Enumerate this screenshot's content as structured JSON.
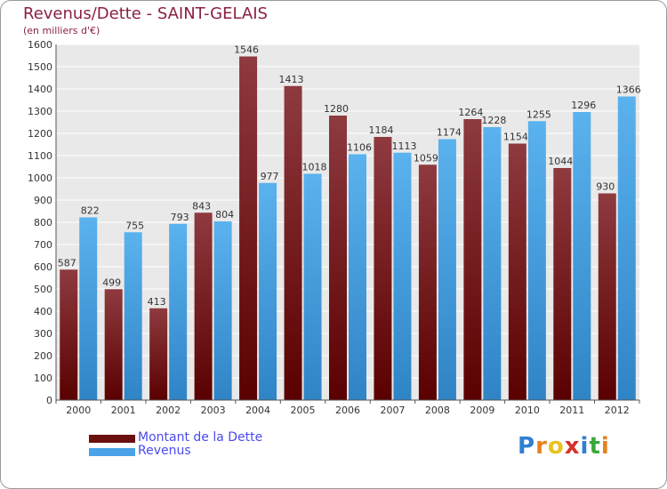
{
  "header": {
    "title": "Revenus/Dette - SAINT-GELAIS",
    "subtitle": "(en milliers d'€)"
  },
  "chart_data": {
    "type": "bar",
    "title": "Revenus/Dette - SAINT-GELAIS",
    "subtitle": "(en milliers d'€)",
    "categories": [
      "2000",
      "2001",
      "2002",
      "2003",
      "2004",
      "2005",
      "2006",
      "2007",
      "2008",
      "2009",
      "2010",
      "2011",
      "2012"
    ],
    "series": [
      {
        "name": "Montant de la Dette",
        "values": [
          587,
          499,
          413,
          843,
          1546,
          1413,
          1280,
          1184,
          1059,
          1264,
          1154,
          1044,
          930
        ],
        "color": "#7a1a1a"
      },
      {
        "name": "Revenus",
        "values": [
          822,
          755,
          793,
          804,
          977,
          1018,
          1106,
          1113,
          1174,
          1228,
          1255,
          1296,
          1366
        ],
        "color": "#4aa3e8"
      }
    ],
    "yticks": [
      0,
      100,
      200,
      300,
      400,
      500,
      600,
      700,
      800,
      900,
      1000,
      1100,
      1200,
      1300,
      1400,
      1500,
      1600
    ],
    "ylim": [
      0,
      1600
    ],
    "grid": true,
    "legend_position": "bottom-left"
  },
  "legend": {
    "items": [
      {
        "label": "Montant de la Dette",
        "color": "#6b0f0f"
      },
      {
        "label": "Revenus",
        "color": "#4aa3e8"
      }
    ]
  },
  "logo": {
    "letters": [
      "P",
      "r",
      "o",
      "x",
      "i",
      "t",
      "i"
    ],
    "colors": [
      "#2f7fd1",
      "#e8821e",
      "#e8c21e",
      "#d8302a",
      "#2f7fd1",
      "#3aa83a",
      "#e8821e"
    ]
  }
}
